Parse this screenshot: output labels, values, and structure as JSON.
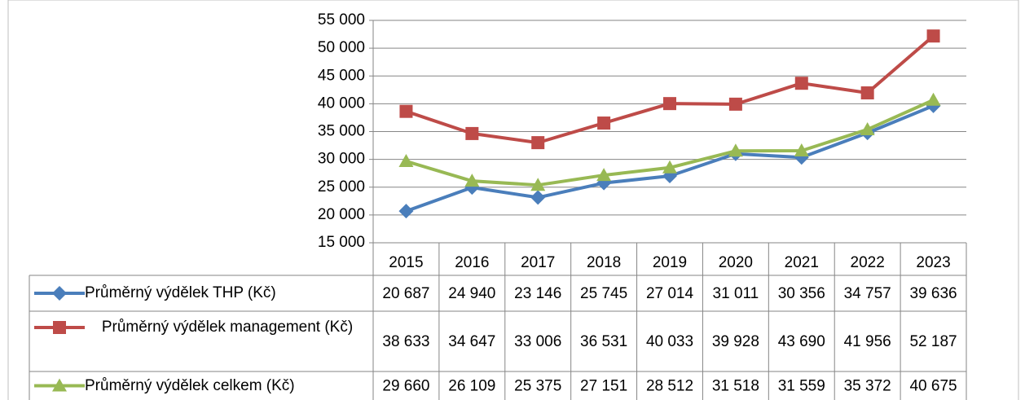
{
  "chart_data": {
    "type": "line",
    "categories": [
      "2015",
      "2016",
      "2017",
      "2018",
      "2019",
      "2020",
      "2021",
      "2022",
      "2023"
    ],
    "ylim": [
      15000,
      55000
    ],
    "yticks": [
      {
        "value": 15000,
        "label": "15 000"
      },
      {
        "value": 20000,
        "label": "20 000"
      },
      {
        "value": 25000,
        "label": "25 000"
      },
      {
        "value": 30000,
        "label": "30 000"
      },
      {
        "value": 35000,
        "label": "35 000"
      },
      {
        "value": 40000,
        "label": "40 000"
      },
      {
        "value": 45000,
        "label": "45 000"
      },
      {
        "value": 50000,
        "label": "50 000"
      },
      {
        "value": 55000,
        "label": "55 000"
      }
    ],
    "grid": true,
    "series": [
      {
        "name": "Průměrný výdělek THP (Kč)",
        "color": "#4a7ebb",
        "marker": "diamond",
        "values": [
          20687,
          24940,
          23146,
          25745,
          27014,
          31011,
          30356,
          34757,
          39636
        ],
        "value_labels": [
          "20 687",
          "24 940",
          "23 146",
          "25 745",
          "27 014",
          "31 011",
          "30 356",
          "34 757",
          "39 636"
        ]
      },
      {
        "name": "Průměrný výdělek management (Kč)",
        "color": "#be4b48",
        "marker": "square",
        "values": [
          38633,
          34647,
          33006,
          36531,
          40033,
          39928,
          43690,
          41956,
          52187
        ],
        "value_labels": [
          "38 633",
          "34 647",
          "33 006",
          "36 531",
          "40 033",
          "39 928",
          "43 690",
          "41 956",
          "52 187"
        ]
      },
      {
        "name": "Průměrný výdělek celkem (Kč)",
        "color": "#98b954",
        "marker": "triangle",
        "values": [
          29660,
          26109,
          25375,
          27151,
          28512,
          31518,
          31559,
          35372,
          40675
        ],
        "value_labels": [
          "29 660",
          "26 109",
          "25 375",
          "27 151",
          "28 512",
          "31 518",
          "31 559",
          "35 372",
          "40 675"
        ]
      }
    ]
  }
}
